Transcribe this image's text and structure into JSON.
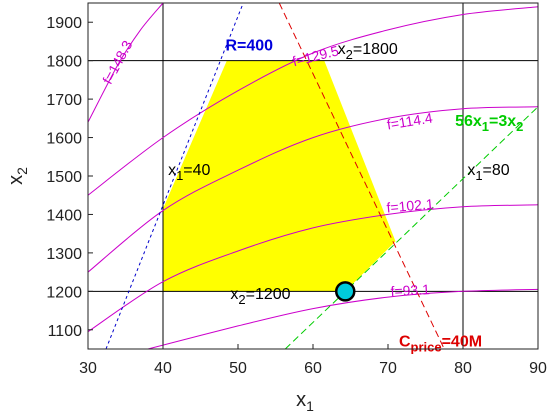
{
  "chart_data": {
    "type": "line",
    "xlabel": "x",
    "xlabel_sub": "1",
    "ylabel": "x",
    "ylabel_sub": "2",
    "xlim": [
      30,
      90
    ],
    "ylim": [
      1050,
      1950
    ],
    "xticks": [
      30,
      40,
      50,
      60,
      70,
      80,
      90
    ],
    "yticks": [
      1100,
      1200,
      1300,
      1400,
      1500,
      1600,
      1700,
      1800,
      1900
    ],
    "grid": "lines at x1=40, x1=80, x2=1200, x2=1800",
    "feasible_region": {
      "color": "#ffff00",
      "polygon": [
        [
          40,
          1200
        ],
        [
          40,
          1415
        ],
        [
          48.5,
          1800
        ],
        [
          61.5,
          1800
        ],
        [
          71,
          1330
        ],
        [
          64.3,
          1200
        ]
      ]
    },
    "constraint_lines": [
      {
        "name": "R",
        "color": "#0000cc",
        "dash": "short",
        "points": [
          [
            32.4,
            1050
          ],
          [
            50.7,
            1950
          ]
        ]
      },
      {
        "name": "C_price",
        "color": "#dd0000",
        "dash": "long",
        "points": [
          [
            55.5,
            1950
          ],
          [
            77.5,
            1050
          ]
        ]
      },
      {
        "name": "56x1=3x2",
        "color": "#00cc00",
        "dash": "long",
        "points": [
          [
            56.3,
            1050
          ],
          [
            90,
            1680
          ]
        ]
      }
    ],
    "objective_contours": [
      {
        "label": "f=148.3",
        "points": [
          [
            30,
            1640
          ],
          [
            34,
            1790
          ],
          [
            37,
            1880
          ],
          [
            40,
            1950
          ]
        ]
      },
      {
        "label": "f=129.5",
        "points": [
          [
            30,
            1450
          ],
          [
            40,
            1600
          ],
          [
            50,
            1722
          ],
          [
            60,
            1820
          ],
          [
            70,
            1880
          ],
          [
            80,
            1920
          ],
          [
            90,
            1940
          ]
        ]
      },
      {
        "label": "f=114.4",
        "points": [
          [
            30,
            1250
          ],
          [
            40,
            1410
          ],
          [
            50,
            1515
          ],
          [
            60,
            1600
          ],
          [
            70,
            1650
          ],
          [
            80,
            1675
          ],
          [
            90,
            1680
          ]
        ]
      },
      {
        "label": "f=102.1",
        "points": [
          [
            30,
            1095
          ],
          [
            40,
            1225
          ],
          [
            50,
            1305
          ],
          [
            60,
            1365
          ],
          [
            70,
            1400
          ],
          [
            80,
            1420
          ],
          [
            90,
            1425
          ]
        ]
      },
      {
        "label": "f=93.1",
        "points": [
          [
            38,
            1050
          ],
          [
            50,
            1110
          ],
          [
            60,
            1155
          ],
          [
            70,
            1185
          ],
          [
            80,
            1200
          ],
          [
            90,
            1205
          ]
        ]
      }
    ],
    "optimum": {
      "x": 64.3,
      "y": 1200,
      "color": "#00ccdd"
    },
    "annotations": [
      {
        "text": "R=400",
        "x": 51.5,
        "y": 1826,
        "color": "#0000dd",
        "bold": true
      },
      {
        "text": "x",
        "sub": "2",
        "tail": "=1800",
        "x": 67.3,
        "y": 1817,
        "color": "#000000"
      },
      {
        "text": "56x",
        "sub": "1",
        "tail": "=3x",
        "sub2": "2",
        "x": 83.5,
        "y": 1630,
        "color": "#00cc00",
        "bold": true
      },
      {
        "text": "x",
        "sub": "1",
        "tail": "=40",
        "x": 43.5,
        "y": 1503,
        "color": "#000000"
      },
      {
        "text": "x",
        "sub": "1",
        "tail": "=80",
        "x": 83.4,
        "y": 1503,
        "color": "#000000"
      },
      {
        "text": "x",
        "sub": "2",
        "tail": "=1200",
        "x": 53,
        "y": 1180,
        "color": "#000000"
      },
      {
        "text": "C",
        "sub": "price",
        "tail": "=40M",
        "x": 77,
        "y": 1057,
        "color": "#dd0000",
        "bold": true
      }
    ]
  }
}
